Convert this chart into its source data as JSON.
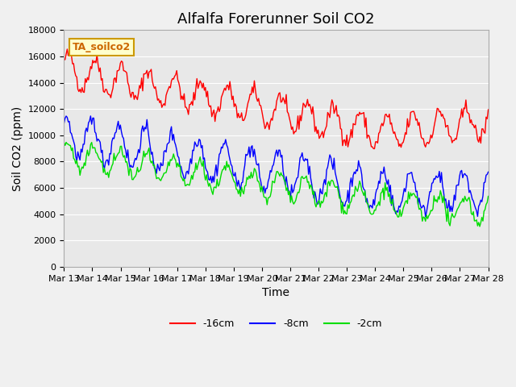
{
  "title": "Alfalfa Forerunner Soil CO2",
  "xlabel": "Time",
  "ylabel": "Soil CO2 (ppm)",
  "legend_label": "TA_soilco2",
  "line_labels": [
    "-16cm",
    "-8cm",
    "-2cm"
  ],
  "line_colors": [
    "#ff0000",
    "#0000ff",
    "#00dd00"
  ],
  "ylim": [
    0,
    18000
  ],
  "yticks": [
    0,
    2000,
    4000,
    6000,
    8000,
    10000,
    12000,
    14000,
    16000,
    18000
  ],
  "xtick_labels": [
    "Mar 13",
    "Mar 14",
    "Mar 15",
    "Mar 16",
    "Mar 17",
    "Mar 18",
    "Mar 19",
    "Mar 20",
    "Mar 21",
    "Mar 22",
    "Mar 23",
    "Mar 24",
    "Mar 25",
    "Mar 26",
    "Mar 27",
    "Mar 28"
  ],
  "background_color": "#e8e8e8",
  "plot_bg_color": "#e8e8e8",
  "title_fontsize": 13,
  "axis_label_fontsize": 10,
  "tick_fontsize": 8,
  "legend_fontsize": 9
}
